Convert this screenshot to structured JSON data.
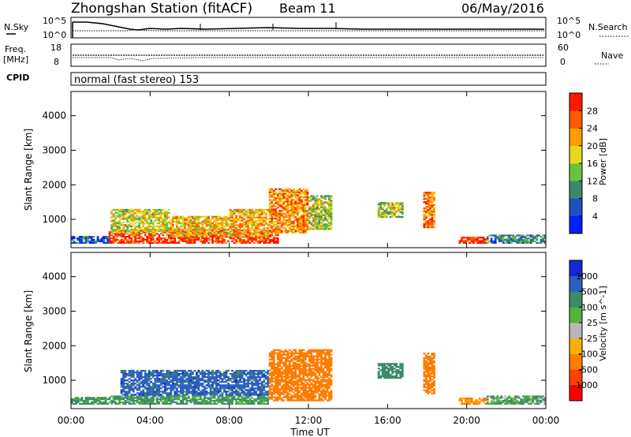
{
  "header": {
    "title": "Zhongshan Station (fitACF)",
    "beam": "Beam 11",
    "date": "06/May/2016"
  },
  "noise_panel": {
    "left_label": "N.Sky",
    "right_label": "N.Search",
    "tick_top": "10^5",
    "tick_bottom": "10^0"
  },
  "freq_panel": {
    "left_label_1": "Freq.",
    "left_label_2": "[MHz]",
    "tick_top": "18",
    "tick_bottom": "8",
    "right_tick_top": "60",
    "right_tick_bottom": "0",
    "right_label": "Nave"
  },
  "cpid_panel": {
    "left_label": "CPID",
    "mode_text": "normal (fast stereo) 153"
  },
  "x_axis": {
    "label": "Time UT",
    "ticks": [
      "00:00",
      "04:00",
      "08:00",
      "12:00",
      "16:00",
      "20:00",
      "00:00"
    ]
  },
  "power_colorbar": {
    "label": "Power [dB]",
    "ticks": [
      "4",
      "8",
      "12",
      "16",
      "20",
      "24",
      "28"
    ],
    "colors": [
      "#0020ff",
      "#2050c0",
      "#3a8a6a",
      "#6cc040",
      "#e6d820",
      "#ff9c00",
      "#ff5a00",
      "#ff1800"
    ]
  },
  "velocity_colorbar": {
    "label": "Velocity [m s^-1]",
    "ticks": [
      "1000",
      "500",
      "100",
      "25",
      "-25",
      "-100",
      "-500",
      "-1000"
    ],
    "colors": [
      "#1428d6",
      "#2d5ec4",
      "#3e8a6c",
      "#52b43a",
      "#b8b8b8",
      "#ffb000",
      "#ff7c00",
      "#ff4000",
      "#ff0000"
    ]
  },
  "chart_data": [
    {
      "type": "heatmap",
      "title": "Power",
      "xlabel": "Time UT",
      "ylabel": "Slant Range [km]",
      "y_ticks": [
        "1000",
        "2000",
        "3000",
        "4000"
      ],
      "xlim": [
        0,
        24
      ],
      "ylim": [
        180,
        4700
      ],
      "clim": [
        0,
        30
      ],
      "units": "dB",
      "regions": [
        {
          "t0": 0.0,
          "t1": 2.0,
          "r0": 300,
          "r1": 520,
          "value": 6
        },
        {
          "t0": 1.9,
          "t1": 10.5,
          "r0": 300,
          "r1": 700,
          "value": 27
        },
        {
          "t0": 2.0,
          "t1": 5.0,
          "r0": 600,
          "r1": 1300,
          "value": 16
        },
        {
          "t0": 5.0,
          "t1": 8.0,
          "r0": 500,
          "r1": 1100,
          "value": 19
        },
        {
          "t0": 8.0,
          "t1": 10.0,
          "r0": 500,
          "r1": 1300,
          "value": 20
        },
        {
          "t0": 10.0,
          "t1": 12.0,
          "r0": 600,
          "r1": 1900,
          "value": 22
        },
        {
          "t0": 12.0,
          "t1": 13.2,
          "r0": 700,
          "r1": 1700,
          "value": 15
        },
        {
          "t0": 15.5,
          "t1": 16.8,
          "r0": 1050,
          "r1": 1500,
          "value": 14
        },
        {
          "t0": 17.8,
          "t1": 18.4,
          "r0": 750,
          "r1": 1800,
          "value": 23
        },
        {
          "t0": 19.6,
          "t1": 21.0,
          "r0": 300,
          "r1": 500,
          "value": 27
        },
        {
          "t0": 21.0,
          "t1": 24.0,
          "r0": 300,
          "r1": 560,
          "value": 9
        }
      ]
    },
    {
      "type": "heatmap",
      "title": "Velocity",
      "xlabel": "Time UT",
      "ylabel": "Slant Range [km]",
      "y_ticks": [
        "1000",
        "2000",
        "3000",
        "4000"
      ],
      "xlim": [
        0,
        24
      ],
      "ylim": [
        180,
        4700
      ],
      "units": "m s^-1",
      "regions": [
        {
          "t0": 0.0,
          "t1": 2.0,
          "r0": 300,
          "r1": 520,
          "value": 150
        },
        {
          "t0": 2.0,
          "t1": 10.0,
          "r0": 300,
          "r1": 560,
          "value": 120
        },
        {
          "t0": 2.5,
          "t1": 10.0,
          "r0": 560,
          "r1": 1300,
          "value": 700
        },
        {
          "t0": 10.0,
          "t1": 13.2,
          "r0": 400,
          "r1": 1900,
          "value": -300
        },
        {
          "t0": 15.5,
          "t1": 16.8,
          "r0": 1050,
          "r1": 1500,
          "value": 200
        },
        {
          "t0": 17.8,
          "t1": 18.4,
          "r0": 600,
          "r1": 1800,
          "value": -200
        },
        {
          "t0": 19.6,
          "t1": 21.0,
          "r0": 300,
          "r1": 500,
          "value": -150
        },
        {
          "t0": 21.0,
          "t1": 24.0,
          "r0": 300,
          "r1": 560,
          "value": 80
        }
      ]
    }
  ]
}
